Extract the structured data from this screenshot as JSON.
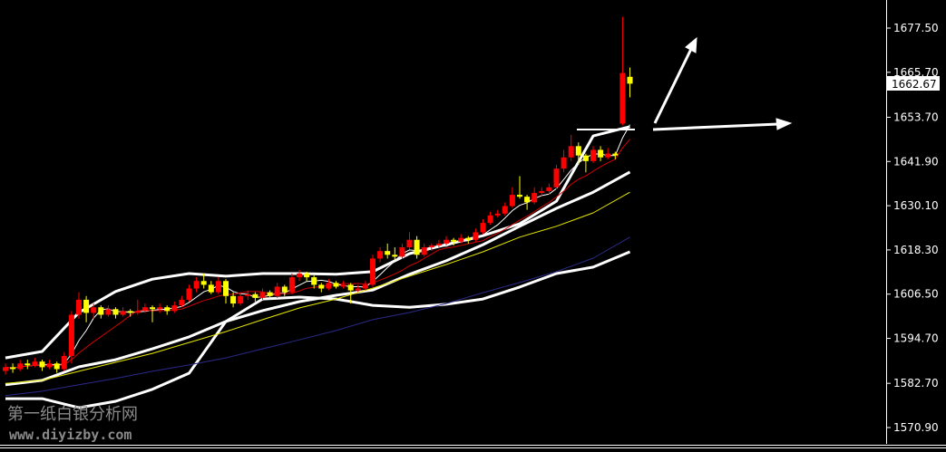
{
  "watermark": {
    "line1": "第一纸白银分析网",
    "line2": "www.diyizby.com"
  },
  "chart_data": {
    "type": "candlestick",
    "title": "",
    "ylim": [
      1566,
      1685
    ],
    "y_ticks": [
      "1677.50",
      "1665.70",
      "1653.70",
      "1641.90",
      "1630.10",
      "1618.30",
      "1606.50",
      "1594.70",
      "1582.70",
      "1570.90"
    ],
    "current_price": "1662.67",
    "colors": {
      "up": "#ff0000",
      "down": "#ffff00",
      "background": "#000000",
      "bollinger": "#ffffff",
      "ma_short": "#ffffff",
      "ma_mid": "#d40000",
      "ma_long": "#e8e800",
      "ma_longest": "#2a2a8a"
    },
    "candles": [
      [
        1586,
        1588,
        1585,
        1587
      ],
      [
        1587,
        1588,
        1585.5,
        1586.5
      ],
      [
        1586.5,
        1589,
        1586,
        1588
      ],
      [
        1588,
        1589,
        1586.5,
        1587.5
      ],
      [
        1587.5,
        1589.5,
        1587,
        1588.5
      ],
      [
        1588.5,
        1589,
        1586,
        1587
      ],
      [
        1587,
        1589,
        1586.5,
        1588
      ],
      [
        1588,
        1588.5,
        1585.5,
        1586.5
      ],
      [
        1586.5,
        1591,
        1586,
        1590
      ],
      [
        1590,
        1602,
        1588,
        1601
      ],
      [
        1601,
        1607,
        1600,
        1605
      ],
      [
        1605,
        1606,
        1599,
        1601.5
      ],
      [
        1601.5,
        1604,
        1600,
        1603
      ],
      [
        1603,
        1603.5,
        1600,
        1601
      ],
      [
        1601,
        1603.5,
        1600.5,
        1602.5
      ],
      [
        1602.5,
        1603,
        1600,
        1601
      ],
      [
        1601,
        1603,
        1600.5,
        1602
      ],
      [
        1602,
        1602.5,
        1600.5,
        1601.5
      ],
      [
        1601.5,
        1605,
        1601,
        1602
      ],
      [
        1602,
        1604,
        1601.5,
        1603
      ],
      [
        1603,
        1603.5,
        1599,
        1602.5
      ],
      [
        1602.5,
        1604,
        1601.5,
        1603
      ],
      [
        1603,
        1603.5,
        1601,
        1602
      ],
      [
        1602,
        1604.5,
        1601.5,
        1603.5
      ],
      [
        1603.5,
        1606,
        1603,
        1605
      ],
      [
        1605,
        1609,
        1604.5,
        1608
      ],
      [
        1608,
        1611,
        1607,
        1610
      ],
      [
        1610,
        1612,
        1608,
        1609
      ],
      [
        1609,
        1610,
        1606.5,
        1607
      ],
      [
        1607,
        1611,
        1606.5,
        1610
      ],
      [
        1610,
        1610.5,
        1604,
        1606
      ],
      [
        1606,
        1607,
        1603,
        1604
      ],
      [
        1604,
        1607,
        1603.5,
        1606
      ],
      [
        1606,
        1607.5,
        1605,
        1606.5
      ],
      [
        1606.5,
        1607,
        1604.5,
        1605.5
      ],
      [
        1605.5,
        1608,
        1605,
        1607
      ],
      [
        1607,
        1607.5,
        1605,
        1606
      ],
      [
        1606,
        1609.5,
        1605.5,
        1608.5
      ],
      [
        1608.5,
        1609,
        1606,
        1607
      ],
      [
        1607,
        1612,
        1606.5,
        1611
      ],
      [
        1611,
        1613,
        1610,
        1612
      ],
      [
        1612,
        1612.5,
        1610,
        1611
      ],
      [
        1611,
        1611.5,
        1608,
        1609
      ],
      [
        1609,
        1609.5,
        1607,
        1608
      ],
      [
        1608,
        1610.5,
        1607.5,
        1609.5
      ],
      [
        1609.5,
        1610,
        1608,
        1608.5
      ],
      [
        1608.5,
        1610,
        1608,
        1609
      ],
      [
        1609,
        1609.5,
        1604,
        1607.5
      ],
      [
        1607.5,
        1609,
        1607,
        1608
      ],
      [
        1608,
        1610,
        1607.5,
        1609
      ],
      [
        1609,
        1617,
        1608.5,
        1616
      ],
      [
        1616,
        1619,
        1615,
        1618
      ],
      [
        1618,
        1620,
        1616,
        1617
      ],
      [
        1617,
        1619,
        1615.5,
        1616.5
      ],
      [
        1616.5,
        1620,
        1616,
        1619
      ],
      [
        1619,
        1623,
        1618.5,
        1621
      ],
      [
        1621,
        1622,
        1616,
        1617
      ],
      [
        1617,
        1620,
        1616.5,
        1619
      ],
      [
        1619,
        1620,
        1618,
        1619.5
      ],
      [
        1619.5,
        1621,
        1619,
        1620
      ],
      [
        1620,
        1622,
        1619.5,
        1621
      ],
      [
        1621,
        1621.5,
        1619.5,
        1620.5
      ],
      [
        1620.5,
        1622.5,
        1620,
        1621.5
      ],
      [
        1621.5,
        1622,
        1620,
        1621
      ],
      [
        1621,
        1624,
        1620.5,
        1623
      ],
      [
        1623,
        1626.5,
        1622.5,
        1625.5
      ],
      [
        1625.5,
        1628.5,
        1625,
        1627.5
      ],
      [
        1627.5,
        1629,
        1627,
        1628
      ],
      [
        1628,
        1631,
        1627.5,
        1630
      ],
      [
        1630,
        1635,
        1629.5,
        1633
      ],
      [
        1633,
        1638,
        1632,
        1632.5
      ],
      [
        1632.5,
        1633,
        1629,
        1631
      ],
      [
        1631,
        1635,
        1630.5,
        1633.5
      ],
      [
        1633.5,
        1635,
        1632.5,
        1634
      ],
      [
        1634,
        1636,
        1633,
        1635
      ],
      [
        1635,
        1641,
        1634.5,
        1640
      ],
      [
        1640,
        1645,
        1639,
        1643
      ],
      [
        1643,
        1649,
        1642,
        1646
      ],
      [
        1646,
        1647,
        1641,
        1643.5
      ],
      [
        1643.5,
        1644,
        1639,
        1642
      ],
      [
        1642,
        1646,
        1641.5,
        1645
      ],
      [
        1645,
        1646,
        1642,
        1643
      ],
      [
        1643,
        1645.5,
        1642.5,
        1644
      ],
      [
        1644,
        1644.5,
        1642.5,
        1643.5
      ],
      [
        1652,
        1680.5,
        1651.5,
        1665.5
      ],
      [
        1664.5,
        1667,
        1659,
        1662.67
      ]
    ],
    "line_sample_bars": [
      0,
      5,
      10,
      15,
      20,
      25,
      30,
      35,
      40,
      45,
      50,
      55,
      60,
      65,
      70,
      75,
      80,
      85
    ],
    "lines": [
      {
        "key": "bollinger_upper",
        "color": "#ffffff",
        "values": [
          1589.5,
          1591.2,
          1601.6,
          1607.2,
          1610.5,
          1612.0,
          1611.3,
          1612.0,
          1612.0,
          1611.8,
          1612.5,
          1617.3,
          1619.7,
          1622.1,
          1625.3,
          1631.3,
          1648.7,
          1651.2
        ]
      },
      {
        "key": "bollinger_middle",
        "color": "#ffffff",
        "values": [
          1582.3,
          1583.5,
          1587.1,
          1589.0,
          1591.9,
          1595.1,
          1599.2,
          1602.1,
          1604.5,
          1606.2,
          1607.6,
          1611.8,
          1615.4,
          1619.7,
          1624.6,
          1629.4,
          1633.7,
          1639.1
        ]
      },
      {
        "key": "bollinger_lower",
        "color": "#ffffff",
        "values": [
          1578.6,
          1578.6,
          1576.2,
          1577.9,
          1581.1,
          1585.4,
          1599.2,
          1605.2,
          1605.7,
          1605.2,
          1603.5,
          1603.0,
          1603.8,
          1605.2,
          1608.4,
          1612.0,
          1613.7,
          1617.8
        ]
      },
      {
        "key": "ma_long",
        "color": "#e8e800",
        "values": [
          1582.7,
          1583.5,
          1585.9,
          1588.3,
          1590.7,
          1593.6,
          1596.5,
          1599.7,
          1602.8,
          1605.2,
          1608.1,
          1611.3,
          1614.4,
          1617.8,
          1621.7,
          1624.6,
          1628.2,
          1633.7
        ]
      },
      {
        "key": "ma_longest",
        "color": "#2a2a8a",
        "values": [
          1579.4,
          1580.6,
          1582.3,
          1584.0,
          1585.9,
          1587.6,
          1589.5,
          1591.9,
          1594.3,
          1596.8,
          1599.7,
          1601.6,
          1604.0,
          1606.9,
          1609.6,
          1612.5,
          1616.1,
          1621.7
        ]
      }
    ]
  }
}
